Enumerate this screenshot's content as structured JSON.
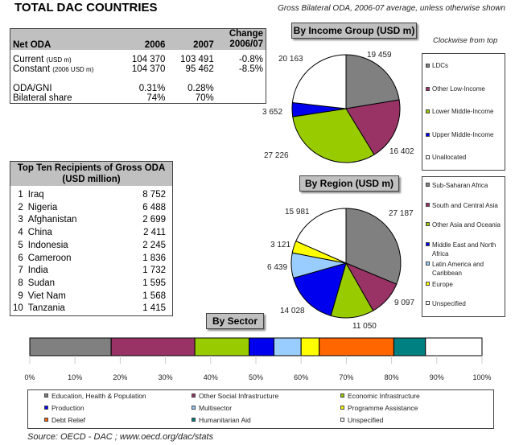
{
  "header": {
    "title": "TOTAL DAC COUNTRIES",
    "subtitle": "Gross Bilateral ODA, 2006-07 average, unless otherwise shown",
    "clockwise_note": "Clockwise from top"
  },
  "net_oda": {
    "col_label": "Net ODA",
    "col_2006": "2006",
    "col_2007": "2007",
    "col_change_1": "Change",
    "col_change_2": "2006/07",
    "rows": [
      {
        "label": "Current",
        "unit": "(USD m)",
        "v2006": "104 370",
        "v2007": "103 491",
        "change": "-0.8%"
      },
      {
        "label": "Constant",
        "unit": "(2006 USD m)",
        "v2006": "104 370",
        "v2007": "95 462",
        "change": "-8.5%"
      },
      {
        "label": "ODA/GNI",
        "unit": "",
        "v2006": "0.31%",
        "v2007": "0.28%",
        "change": ""
      },
      {
        "label": "Bilateral share",
        "unit": "",
        "v2006": "74%",
        "v2007": "70%",
        "change": ""
      }
    ]
  },
  "top_ten": {
    "title_1": "Top Ten Recipients of Gross ODA",
    "title_2": "(USD million)",
    "rows": [
      {
        "rank": "1",
        "country": "Iraq",
        "value": "8 752"
      },
      {
        "rank": "2",
        "country": "Nigeria",
        "value": "6 488"
      },
      {
        "rank": "3",
        "country": "Afghanistan",
        "value": "2 699"
      },
      {
        "rank": "4",
        "country": "China",
        "value": "2 411"
      },
      {
        "rank": "5",
        "country": "Indonesia",
        "value": "2 245"
      },
      {
        "rank": "6",
        "country": "Cameroon",
        "value": "1 836"
      },
      {
        "rank": "7",
        "country": "India",
        "value": "1 732"
      },
      {
        "rank": "8",
        "country": "Sudan",
        "value": "1 595"
      },
      {
        "rank": "9",
        "country": "Viet Nam",
        "value": "1 568"
      },
      {
        "rank": "10",
        "country": "Tanzania",
        "value": "1 415"
      }
    ]
  },
  "source": "Source:   OECD - DAC ; www.oecd.org/dac/stats",
  "chart_data": [
    {
      "type": "pie",
      "title": "By Income Group (USD m)",
      "direction": "clockwise from top",
      "categories": [
        "LDCs",
        "Other Low-Income",
        "Lower Middle-Income",
        "Upper Middle-Income",
        "Unallocated"
      ],
      "values": [
        19459,
        16402,
        27226,
        3652,
        20163
      ],
      "labels": [
        "19 459",
        "16 402",
        "27 226",
        "3 652",
        "20 163"
      ],
      "colors": [
        "#808080",
        "#993366",
        "#99cc00",
        "#0000ee",
        "#ffffff"
      ]
    },
    {
      "type": "pie",
      "title": "By Region (USD m)",
      "direction": "clockwise from top",
      "categories": [
        "Sub-Saharan Africa",
        "South and Central Asia",
        "Other Asia and Oceania",
        "Middle East and North Africa",
        "Latin America and Caribbean",
        "Europe",
        "Unspecified"
      ],
      "values": [
        27187,
        9097,
        11050,
        14028,
        6439,
        3121,
        15981
      ],
      "labels": [
        "27 187",
        "9 097",
        "11 050",
        "14 028",
        "6 439",
        "3 121",
        "15 981"
      ],
      "colors": [
        "#808080",
        "#993366",
        "#99cc00",
        "#0000ee",
        "#99ccff",
        "#ffff00",
        "#ffffff"
      ]
    },
    {
      "type": "bar",
      "orientation": "horizontal-stacked-100",
      "title": "By Sector",
      "categories": [
        "Education, Health & Population",
        "Other Social Infrastructure",
        "Economic Infrastructure",
        "Production",
        "Multisector",
        "Programme Assistance",
        "Debt Relief",
        "Humanitarian Aid",
        "Unspecified"
      ],
      "values": [
        18,
        18.5,
        12,
        5.5,
        6,
        4,
        16.5,
        7,
        12.5
      ],
      "colors": [
        "#808080",
        "#993366",
        "#99cc00",
        "#0000ee",
        "#99ccff",
        "#ffff00",
        "#ff6600",
        "#008080",
        "#ffffff"
      ],
      "ticks": [
        "0%",
        "10%",
        "20%",
        "30%",
        "40%",
        "50%",
        "60%",
        "70%",
        "80%",
        "90%",
        "100%"
      ],
      "xlim": [
        0,
        100
      ]
    }
  ]
}
